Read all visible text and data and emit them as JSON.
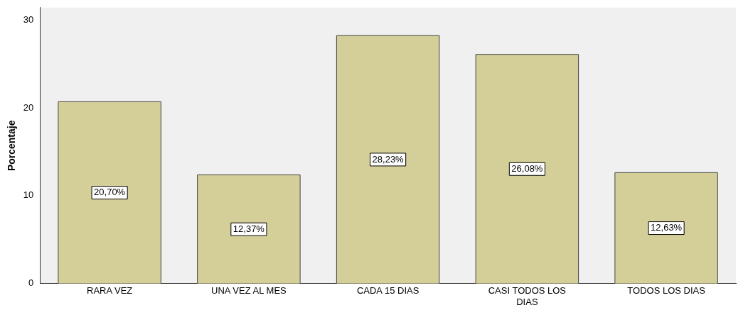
{
  "chart_data": {
    "type": "bar",
    "ylabel": "Porcentaje",
    "categories": [
      "RARA VEZ",
      "UNA VEZ AL MES",
      "CADA 15 DIAS",
      "CASI TODOS LOS DIAS",
      "TODOS LOS DIAS"
    ],
    "values": [
      20.7,
      12.37,
      28.23,
      26.08,
      12.63
    ],
    "value_labels": [
      "20,70%",
      "12,37%",
      "28,23%",
      "26,08%",
      "12,63%"
    ],
    "color": "#d4cf98",
    "ylim": [
      0,
      31.4
    ],
    "yticks": [
      0,
      10,
      20,
      30
    ],
    "grid": false,
    "legend": false
  }
}
